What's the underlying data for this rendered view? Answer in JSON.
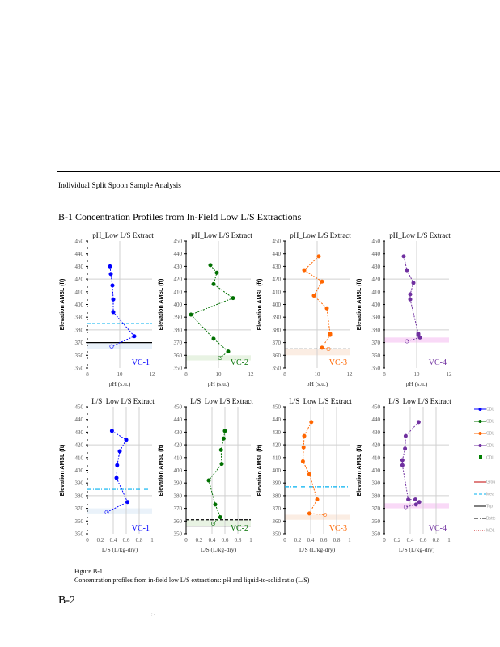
{
  "section_heading": "Individual Split Spoon Sample Analysis",
  "figure_heading": "B-1 Concentration Profiles from In-Field Low L/S Extractions",
  "caption": {
    "label": "Figure B-1",
    "text": "Concentration profiles from in-field low L/S extractions: pH and liquid-to-solid ratio (L/S)"
  },
  "page_number": "B-2",
  "footer_marks": "' ;  ·",
  "legend": [
    {
      "label": "CDL",
      "color": "#0000ff",
      "style": "marker"
    },
    {
      "label": "CDL",
      "color": "#007000",
      "style": "marker"
    },
    {
      "label": "CDL",
      "color": "#ff6600",
      "style": "marker"
    },
    {
      "label": "CDL",
      "color": "#7030a0",
      "style": "marker"
    },
    {
      "label": "CDL",
      "color": "#008000",
      "style": "square"
    },
    {
      "label": "Grou",
      "color": "#c00000",
      "style": "solid"
    },
    {
      "label": "Mea",
      "color": "#00b0f0",
      "style": "dash"
    },
    {
      "label": "Top",
      "color": "#000000",
      "style": "solid"
    },
    {
      "label": "Botte",
      "color": "#000000",
      "style": "dashdot"
    },
    {
      "label": "MDL",
      "color": "#c00000",
      "style": "dot"
    }
  ],
  "chart_data": [
    {
      "type": "line",
      "title": "pH_Low L/S Extract",
      "well": "VC-1",
      "color": "#0000ff",
      "xlabel": "pH (s.u.)",
      "ylabel": "Elevation AMSL (ft)",
      "xlim": [
        8,
        12
      ],
      "xticks": [
        8,
        10,
        12
      ],
      "ylim": [
        350,
        450
      ],
      "points": [
        [
          9.4,
          430
        ],
        [
          9.45,
          424
        ],
        [
          9.55,
          415
        ],
        [
          9.6,
          404
        ],
        [
          9.6,
          394
        ],
        [
          10.9,
          375
        ],
        [
          9.5,
          367
        ]
      ],
      "hlines": [
        {
          "y": 385,
          "color": "#00b0f0",
          "style": "dash"
        },
        {
          "y": 370,
          "color": "#000",
          "style": "solid"
        }
      ],
      "band": [
        365,
        370
      ],
      "band_color": "#eaf2fa"
    },
    {
      "type": "line",
      "title": "pH_Low L/S Extract",
      "well": "VC-2",
      "color": "#007000",
      "xlabel": "pH (s.u.)",
      "ylabel": "Elevation AMSL (ft)",
      "xlim": [
        8,
        12
      ],
      "xticks": [
        8,
        10,
        12
      ],
      "ylim": [
        350,
        450
      ],
      "points": [
        [
          9.5,
          431
        ],
        [
          9.9,
          425
        ],
        [
          9.7,
          416
        ],
        [
          10.9,
          405
        ],
        [
          8.3,
          392
        ],
        [
          9.7,
          373
        ],
        [
          10.6,
          363
        ],
        [
          10.1,
          358
        ]
      ],
      "hlines": [],
      "band": [
        356,
        360
      ],
      "band_color": "#e8f3e3"
    },
    {
      "type": "line",
      "title": "pH_Low L/S Extract",
      "well": "VC-3",
      "color": "#ff6600",
      "xlabel": "pH (s.u.)",
      "ylabel": "Elevation AMSL (ft)",
      "xlim": [
        8,
        12
      ],
      "xticks": [
        8,
        10,
        12
      ],
      "ylim": [
        350,
        450
      ],
      "points": [
        [
          10.1,
          438
        ],
        [
          9.2,
          427
        ],
        [
          10.3,
          418
        ],
        [
          9.8,
          407
        ],
        [
          10.6,
          397
        ],
        [
          10.8,
          377
        ],
        [
          10.8,
          376
        ],
        [
          10.3,
          366
        ],
        [
          10.7,
          365
        ]
      ],
      "hlines": [
        {
          "y": 365,
          "color": "#000",
          "style": "dash"
        }
      ],
      "band": [
        360,
        365
      ],
      "band_color": "#fbede3"
    },
    {
      "type": "line",
      "title": "pH_Low L/S Extract",
      "well": "VC-4",
      "color": "#7030a0",
      "xlabel": "pH (s.u.)",
      "ylabel": "Elevation AMSL (ft)",
      "xlim": [
        8,
        12
      ],
      "xticks": [
        8,
        10,
        12
      ],
      "ylim": [
        350,
        450
      ],
      "points": [
        [
          9.2,
          438
        ],
        [
          9.4,
          427
        ],
        [
          9.8,
          417
        ],
        [
          9.6,
          408
        ],
        [
          9.6,
          404
        ],
        [
          10.1,
          377
        ],
        [
          10.1,
          376
        ],
        [
          10.2,
          374
        ],
        [
          9.4,
          371
        ]
      ],
      "hlines": [],
      "band": [
        370,
        374
      ],
      "band_color": "#f9d9f7"
    },
    {
      "type": "line",
      "title": "L/S_Low L/S Extract",
      "well": "VC-1",
      "color": "#0000ff",
      "xlabel": "L/S (L/kg-dry)",
      "ylabel": "Elevation AMSL (ft)",
      "xlim": [
        0,
        1
      ],
      "xticks": [
        0,
        0.2,
        0.4,
        0.6,
        0.8,
        1
      ],
      "ylim": [
        350,
        450
      ],
      "points": [
        [
          0.38,
          431
        ],
        [
          0.6,
          424
        ],
        [
          0.5,
          415
        ],
        [
          0.46,
          404
        ],
        [
          0.45,
          394
        ],
        [
          0.62,
          375
        ],
        [
          0.3,
          367
        ]
      ],
      "hlines": [
        {
          "y": 385,
          "color": "#00b0f0",
          "style": "dashdot"
        }
      ],
      "band": [
        366,
        370
      ],
      "band_color": "#eaf2fa"
    },
    {
      "type": "line",
      "title": "L/S_Low L/S Extract",
      "well": "VC-2",
      "color": "#007000",
      "xlabel": "L/S (L/kg-dry)",
      "ylabel": "Elevation AMSL (ft)",
      "xlim": [
        0,
        1
      ],
      "xticks": [
        0,
        0.2,
        0.4,
        0.6,
        0.8,
        1
      ],
      "ylim": [
        350,
        450
      ],
      "points": [
        [
          0.6,
          431
        ],
        [
          0.58,
          425
        ],
        [
          0.54,
          416
        ],
        [
          0.55,
          405
        ],
        [
          0.35,
          392
        ],
        [
          0.45,
          373
        ],
        [
          0.53,
          363
        ],
        [
          0.42,
          358
        ]
      ],
      "hlines": [
        {
          "y": 361,
          "color": "#000",
          "style": "dash"
        },
        {
          "y": 356,
          "color": "#000",
          "style": "solid"
        }
      ],
      "band": [
        356,
        361
      ],
      "band_color": "#e8f3e3"
    },
    {
      "type": "line",
      "title": "L/S_Low L/S Extract",
      "well": "VC-3",
      "color": "#ff6600",
      "xlabel": "L/S (L/kg-dry)",
      "ylabel": "Elevation AMSL (ft)",
      "xlim": [
        0,
        1
      ],
      "xticks": [
        0,
        0.2,
        0.4,
        0.6,
        0.8,
        1
      ],
      "ylim": [
        350,
        450
      ],
      "points": [
        [
          0.41,
          438
        ],
        [
          0.3,
          427
        ],
        [
          0.29,
          418
        ],
        [
          0.28,
          407
        ],
        [
          0.38,
          397
        ],
        [
          0.5,
          377
        ],
        [
          0.38,
          366
        ],
        [
          0.62,
          365
        ]
      ],
      "hlines": [
        {
          "y": 387,
          "color": "#00b0f0",
          "style": "dashdot"
        }
      ],
      "band": [
        361,
        365
      ],
      "band_color": "#fbede3"
    },
    {
      "type": "line",
      "title": "L/S_Low L/S Extract",
      "well": "VC-4",
      "color": "#7030a0",
      "xlabel": "L/S (L/kg-dry)",
      "ylabel": "Elevation AMSL (ft)",
      "xlim": [
        0,
        1
      ],
      "xticks": [
        0,
        0.2,
        0.4,
        0.6,
        0.8,
        1
      ],
      "ylim": [
        350,
        450
      ],
      "points": [
        [
          0.53,
          438
        ],
        [
          0.33,
          427
        ],
        [
          0.32,
          417
        ],
        [
          0.28,
          408
        ],
        [
          0.28,
          404
        ],
        [
          0.37,
          377
        ],
        [
          0.48,
          377
        ],
        [
          0.54,
          375
        ],
        [
          0.49,
          373
        ],
        [
          0.33,
          371
        ]
      ],
      "hlines": [],
      "band": [
        370,
        374
      ],
      "band_color": "#f9d9f7"
    }
  ]
}
